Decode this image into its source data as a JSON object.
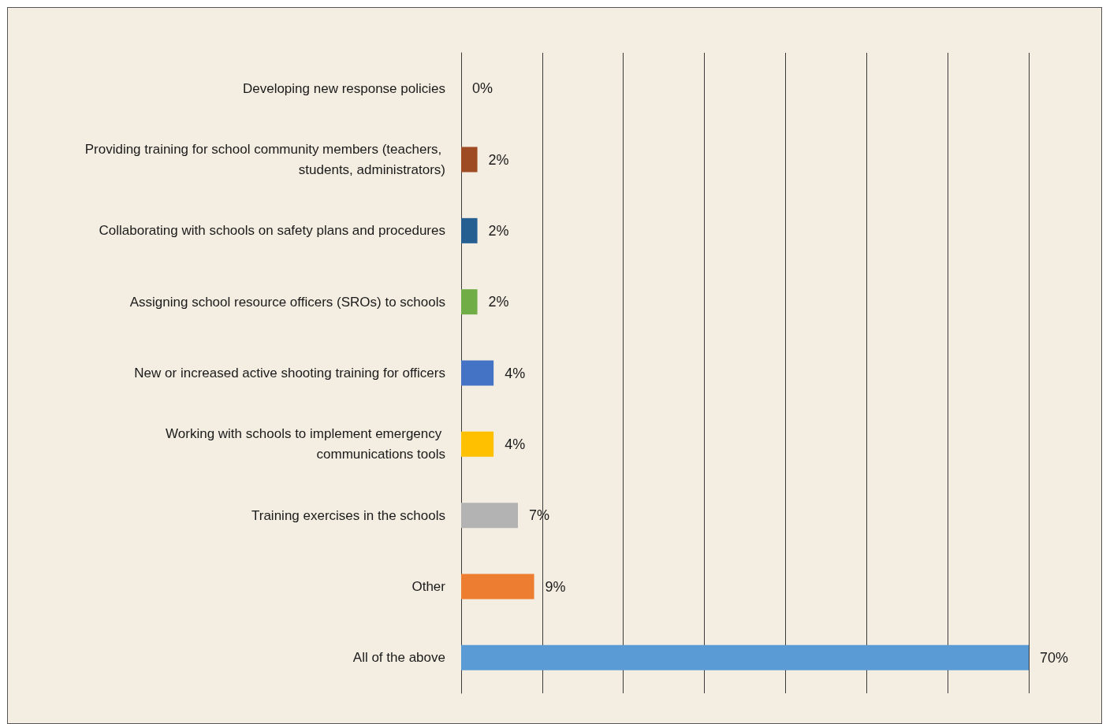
{
  "chart_data": {
    "type": "bar",
    "orientation": "horizontal",
    "categories": [
      "Developing new response policies",
      "Providing training for school community members (teachers, students, administrators)",
      "Collaborating with schools on safety plans and procedures",
      "Assigning school resource officers (SROs) to schools",
      "New or increased active shooting training for officers",
      "Working with schools to implement emergency communications tools",
      "Training exercises in the schools",
      "Other",
      "All of the above"
    ],
    "values": [
      0,
      2,
      2,
      2,
      4,
      4,
      7,
      9,
      70
    ],
    "colors": [
      "#5b9bd5",
      "#9e4a23",
      "#255e91",
      "#70ad47",
      "#4472c4",
      "#ffc000",
      "#b3b3b3",
      "#ed7d31",
      "#5b9bd5"
    ],
    "value_labels": [
      "0%",
      "2%",
      "2%",
      "2%",
      "4%",
      "4%",
      "7%",
      "9%",
      "70%"
    ],
    "xlim": [
      0,
      70
    ],
    "xticks": [
      {
        "value": 0,
        "label": null
      },
      {
        "value": 10,
        "label": null
      },
      {
        "value": 20,
        "label": null
      },
      {
        "value": 30,
        "label": null
      },
      {
        "value": 40,
        "label": null
      },
      {
        "value": 50,
        "label": null
      },
      {
        "value": 60,
        "label": null
      },
      {
        "value": 70,
        "label": null
      }
    ],
    "grid": "x",
    "tick_labels": "y"
  }
}
